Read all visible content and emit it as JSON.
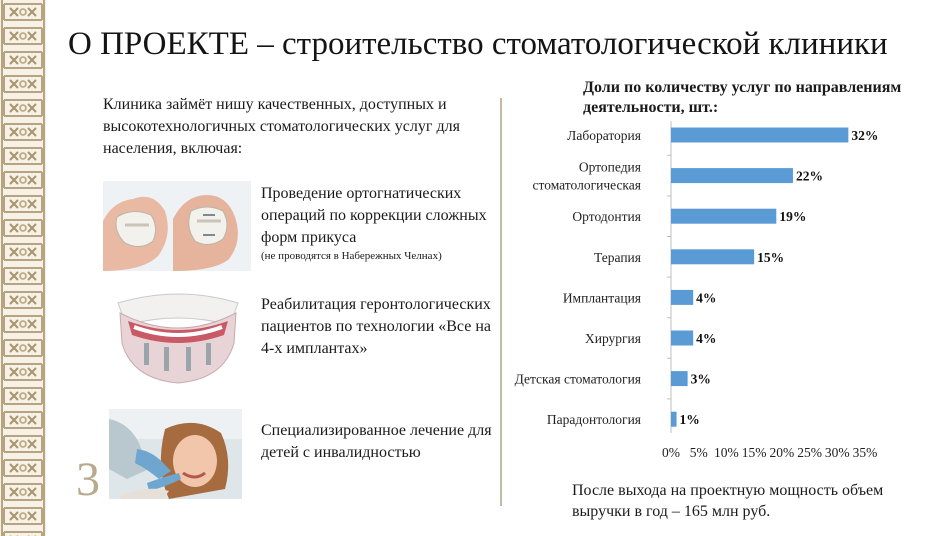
{
  "title": "О ПРОЕКТЕ – строительство стоматологической клиники",
  "page_number": "3",
  "intro": "Клиника займёт нишу качественных, доступных и высокотехнологичных стоматологических услуг для населения, включая:",
  "items": [
    {
      "text": "Проведение ортогнатических операций по коррекции сложных форм прикуса",
      "note": "(не проводятся в Набережных Челнах)",
      "image": "jaw-surgery-illustration"
    },
    {
      "text": "Реабилитация геронтологических пациентов по технологии «Все на 4-х имплантах»",
      "note": "",
      "image": "all-on-4-implant-illustration"
    },
    {
      "text": "Специализированное лечение для детей с инвалидностью",
      "note": "",
      "image": "child-dental-treatment-photo"
    }
  ],
  "chart_title": "Доли по количеству услуг по направлениям деятельности, шт.:",
  "chart_data": {
    "type": "bar",
    "orientation": "horizontal",
    "title": "Доли по количеству услуг по направлениям деятельности, шт.:",
    "categories": [
      "Лаборатория",
      "Ортопедия стоматологическая",
      "Ортодонтия",
      "Терапия",
      "Имплантация",
      "Хирургия",
      "Детская стоматология",
      "Парадонтология"
    ],
    "category_lines": [
      [
        "Лаборатория"
      ],
      [
        "Ортопедия",
        "стоматологическая"
      ],
      [
        "Ортодонтия"
      ],
      [
        "Терапия"
      ],
      [
        "Имплантация"
      ],
      [
        "Хирургия"
      ],
      [
        "Детская стоматология"
      ],
      [
        "Парадонтология"
      ]
    ],
    "values": [
      32,
      22,
      19,
      15,
      4,
      4,
      3,
      1
    ],
    "data_labels": [
      "32%",
      "22%",
      "19%",
      "15%",
      "4%",
      "4%",
      "3%",
      "1%"
    ],
    "xlim": [
      0,
      35
    ],
    "x_ticks": [
      0,
      5,
      10,
      15,
      20,
      25,
      30,
      35
    ],
    "x_tick_labels": [
      "0%",
      "5%",
      "10%",
      "15%",
      "20%",
      "25%",
      "30%",
      "35%"
    ],
    "grid": false,
    "bar_color": "#5b9bd5"
  },
  "footer": "После выхода на проектную мощность объем выручки в год – 165 млн руб.",
  "colors": {
    "ornament_gold": "#b7a47e",
    "ornament_bg": "#f7f2e8",
    "divider": "#c3b9a6",
    "bar": "#5b9bd5",
    "page_number": "#b8aa8c"
  }
}
